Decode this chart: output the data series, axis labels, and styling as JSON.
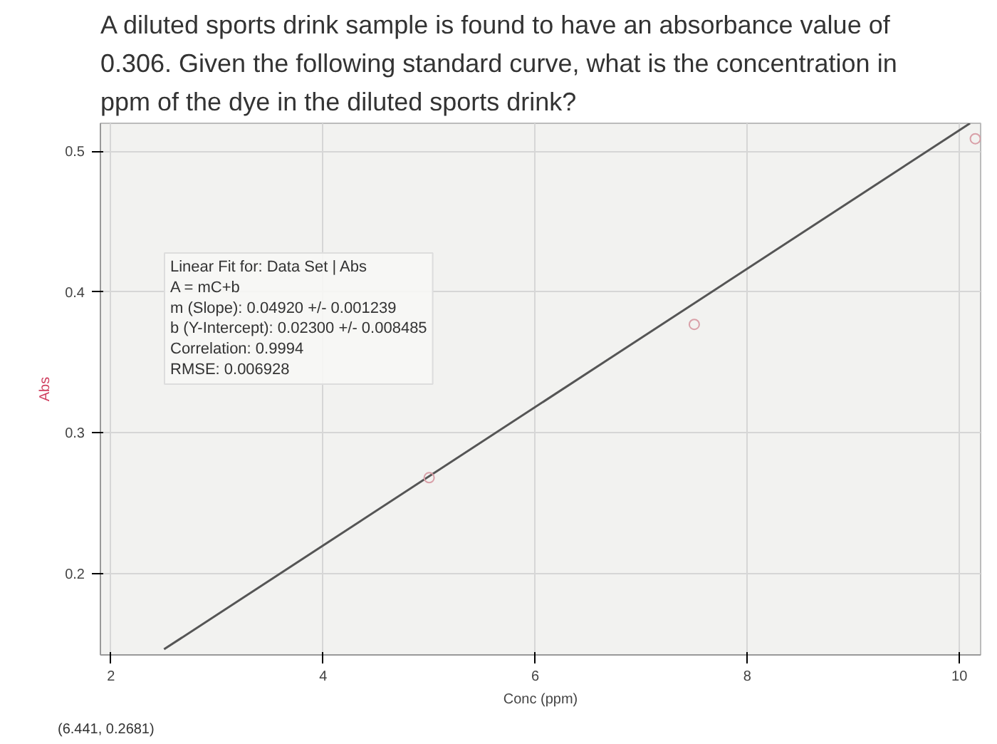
{
  "chart_data": {
    "type": "line",
    "title": "A diluted sports drink sample is found to have an absorbance value of 0.306. Given the following standard curve, what is the concentration in ppm of the dye in the diluted sports drink?",
    "xlabel": "Conc (ppm)",
    "ylabel": "Abs",
    "series": [
      {
        "color": "#555555",
        "marker": "none",
        "x": [
          2.5,
          10.1
        ],
        "values": [
          0.146,
          0.52
        ]
      },
      {
        "type": "scatter",
        "marker": "circle",
        "color": "#d9a0a8",
        "x": [
          5.0,
          7.5,
          10.15
        ],
        "values": [
          0.268,
          0.377,
          0.509
        ]
      }
    ],
    "xlim": [
      1.9,
      10.2
    ],
    "ylim": [
      0.142,
      0.52
    ],
    "xticks": [
      2,
      4,
      6,
      8,
      10
    ],
    "yticks": [
      0.2,
      0.3,
      0.4,
      0.5
    ],
    "grid": true,
    "line_style": "solid",
    "annotations": [
      "Linear Fit for: Data Set | Abs",
      "A = mC+b",
      "m (Slope): 0.04920 +/- 0.001239",
      "b (Y-Intercept): 0.02300 +/- 0.008485",
      "Correlation: 0.9994",
      "RMSE: 0.006928",
      "(6.441, 0.2681)"
    ]
  }
}
